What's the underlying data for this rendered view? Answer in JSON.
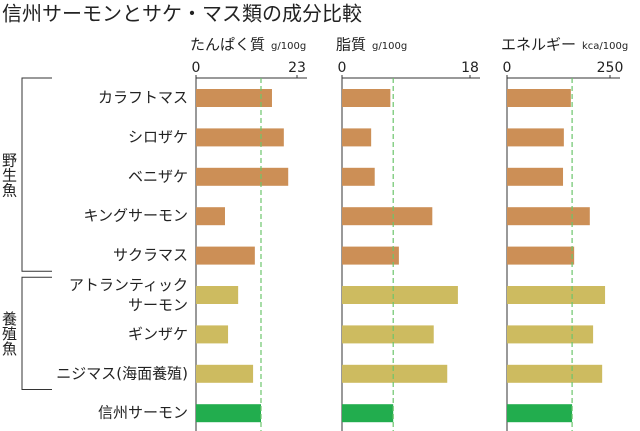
{
  "chart_data": {
    "type": "bar",
    "orientation": "horizontal",
    "title": "信州サーモンとサケ・マス類の成分比較",
    "groups": [
      {
        "label": "野生魚",
        "color": "#cc8f56",
        "categories": [
          "カラフトマス",
          "シロザケ",
          "ベニザケ",
          "キングサーモン",
          "サクラマス"
        ]
      },
      {
        "label": "養殖魚",
        "color": "#cdbb60",
        "categories": [
          "アトランティック\nサーモン",
          "ギンザケ",
          "ニジマス(海面養殖)"
        ]
      },
      {
        "color": "#22ad4e",
        "categories": [
          "信州サーモン"
        ]
      }
    ],
    "reference_color": "#6cc56c",
    "panels": [
      {
        "title": "たんぱく質",
        "unit": "g/100g",
        "xlim": [
          0,
          23
        ],
        "xticks": [
          0,
          23
        ],
        "values": [
          17.3,
          20.0,
          21.0,
          6.6,
          13.4,
          9.6,
          7.3,
          13.0,
          14.8
        ]
      },
      {
        "title": "脂質",
        "unit": "g/100g",
        "xlim": [
          0,
          18
        ],
        "xticks": [
          0,
          18
        ],
        "values": [
          6.8,
          4.1,
          4.6,
          12.7,
          8.0,
          16.3,
          12.9,
          14.8,
          7.2
        ]
      },
      {
        "title": "エネルギー",
        "unit": "kca/100g",
        "xlim": [
          0,
          250
        ],
        "xticks": [
          0,
          250
        ],
        "values": [
          155,
          138,
          136,
          201,
          163,
          238,
          209,
          231,
          158
        ]
      }
    ]
  }
}
